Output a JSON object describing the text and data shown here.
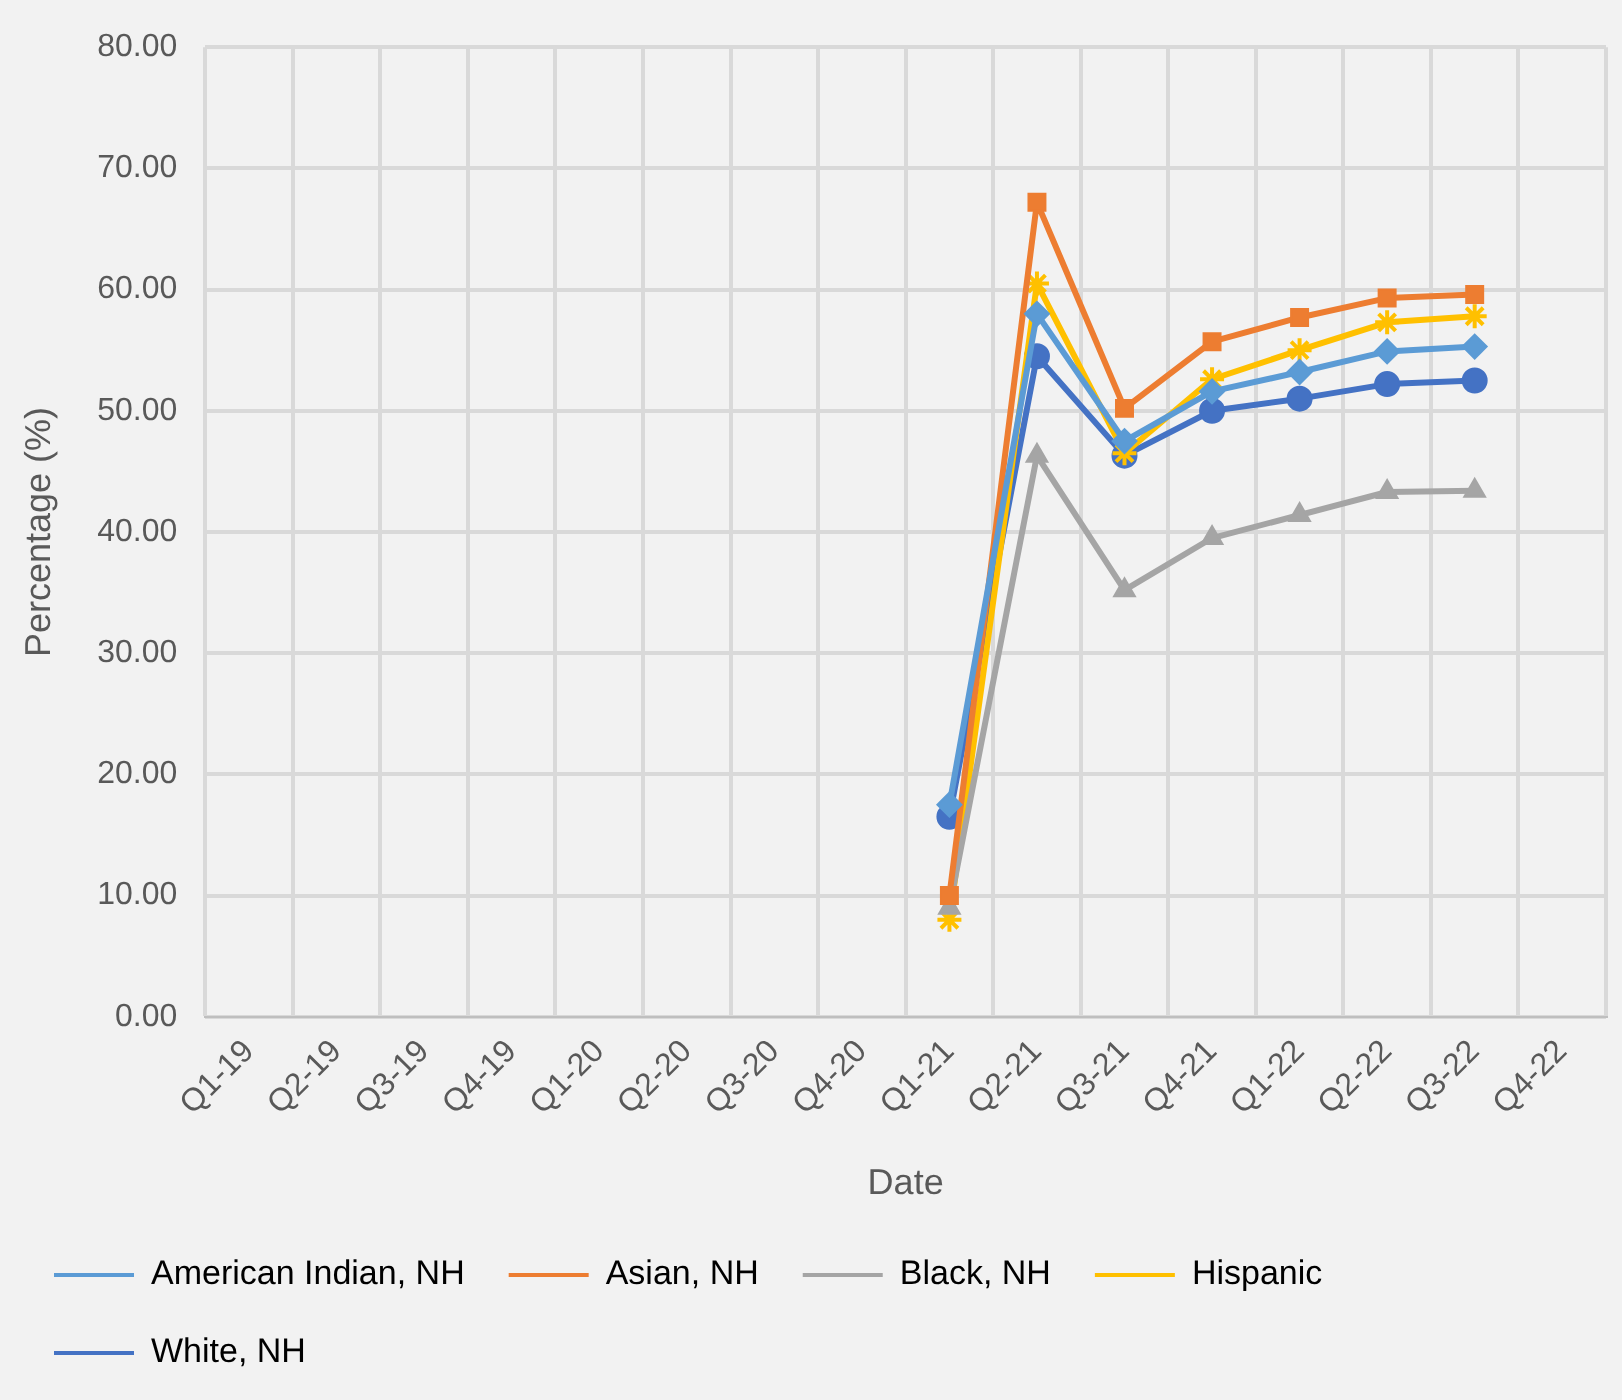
{
  "chart_data": {
    "type": "line",
    "xlabel": "Date",
    "ylabel": "Percentage (%)",
    "categories": [
      "Q1-19",
      "Q2-19",
      "Q3-19",
      "Q4-19",
      "Q1-20",
      "Q2-20",
      "Q3-20",
      "Q4-20",
      "Q1-21",
      "Q2-21",
      "Q3-21",
      "Q4-21",
      "Q1-22",
      "Q2-22",
      "Q3-22",
      "Q4-22"
    ],
    "series": [
      {
        "name": "American Indian, NH",
        "color": "#5b9bd5",
        "marker": "diamond",
        "values": [
          null,
          null,
          null,
          null,
          null,
          null,
          null,
          null,
          17.5,
          58.0,
          47.5,
          51.6,
          53.2,
          54.9,
          55.3,
          null
        ]
      },
      {
        "name": "Asian, NH",
        "color": "#ed7d31",
        "marker": "square",
        "values": [
          null,
          null,
          null,
          null,
          null,
          null,
          null,
          null,
          10.0,
          67.2,
          50.2,
          55.7,
          57.7,
          59.3,
          59.6,
          null
        ]
      },
      {
        "name": "Black, NH",
        "color": "#a5a5a5",
        "marker": "triangle",
        "values": [
          null,
          null,
          null,
          null,
          null,
          null,
          null,
          null,
          9.0,
          46.3,
          35.2,
          39.5,
          41.4,
          43.3,
          43.4,
          null
        ]
      },
      {
        "name": "Hispanic",
        "color": "#ffc000",
        "marker": "cross",
        "values": [
          null,
          null,
          null,
          null,
          null,
          null,
          null,
          null,
          8.0,
          60.5,
          46.5,
          52.6,
          55.0,
          57.3,
          57.8,
          null
        ]
      },
      {
        "name": "White, NH",
        "color": "#4472c4",
        "marker": "circle",
        "values": [
          null,
          null,
          null,
          null,
          null,
          null,
          null,
          null,
          16.5,
          54.5,
          46.3,
          50.0,
          51.0,
          52.2,
          52.5,
          null
        ]
      }
    ],
    "ylim": [
      0,
      80
    ],
    "yticks": [
      {
        "value": 0,
        "label": "0.00"
      },
      {
        "value": 10,
        "label": "10.00"
      },
      {
        "value": 20,
        "label": "20.00"
      },
      {
        "value": 30,
        "label": "30.00"
      },
      {
        "value": 40,
        "label": "40.00"
      },
      {
        "value": 50,
        "label": "50.00"
      },
      {
        "value": 60,
        "label": "60.00"
      },
      {
        "value": 70,
        "label": "70.00"
      },
      {
        "value": 80,
        "label": "80.00"
      }
    ],
    "grid": true,
    "legend": "bottom",
    "line_style": "solid"
  }
}
